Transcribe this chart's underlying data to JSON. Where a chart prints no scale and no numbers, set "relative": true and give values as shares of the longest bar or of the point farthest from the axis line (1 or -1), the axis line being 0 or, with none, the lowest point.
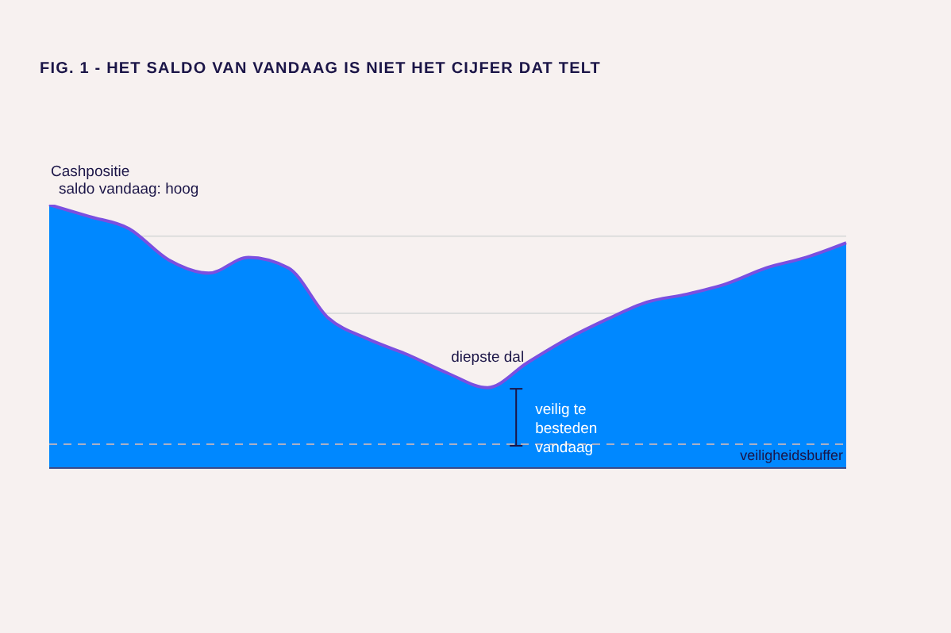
{
  "chart_data": {
    "type": "area",
    "title": "FIG. 1 - HET SALDO VAN VANDAAG IS NIET HET CIJFER DAT TELT",
    "relative": true,
    "categories": [
      null,
      null,
      null,
      null,
      null,
      null,
      null,
      null,
      null,
      null,
      null,
      null,
      null,
      null,
      null,
      null,
      null,
      null,
      null,
      null,
      null
    ],
    "values": [
      1.0,
      0.955,
      0.909,
      0.79,
      0.74,
      0.8,
      0.76,
      0.57,
      0.49,
      0.43,
      0.36,
      0.305,
      0.4,
      0.49,
      0.565,
      0.63,
      0.66,
      0.7,
      0.76,
      0.8,
      0.855
    ],
    "color": "#0088ff",
    "ref_lines": [
      {
        "axis": "y",
        "value": 0.88,
        "color": "#dddddd"
      },
      {
        "axis": "y",
        "value": 0.587,
        "color": "#dddddd"
      },
      {
        "axis": "y",
        "value": 0.09,
        "label": "veiligheidsbuffer",
        "color": "#a9b0c4",
        "line_style": "dashed"
      }
    ],
    "annotations": [
      "Cashpositie",
      "saldo vandaag: hoog",
      "diepste dal",
      "veilig te besteden vandaag"
    ]
  }
}
